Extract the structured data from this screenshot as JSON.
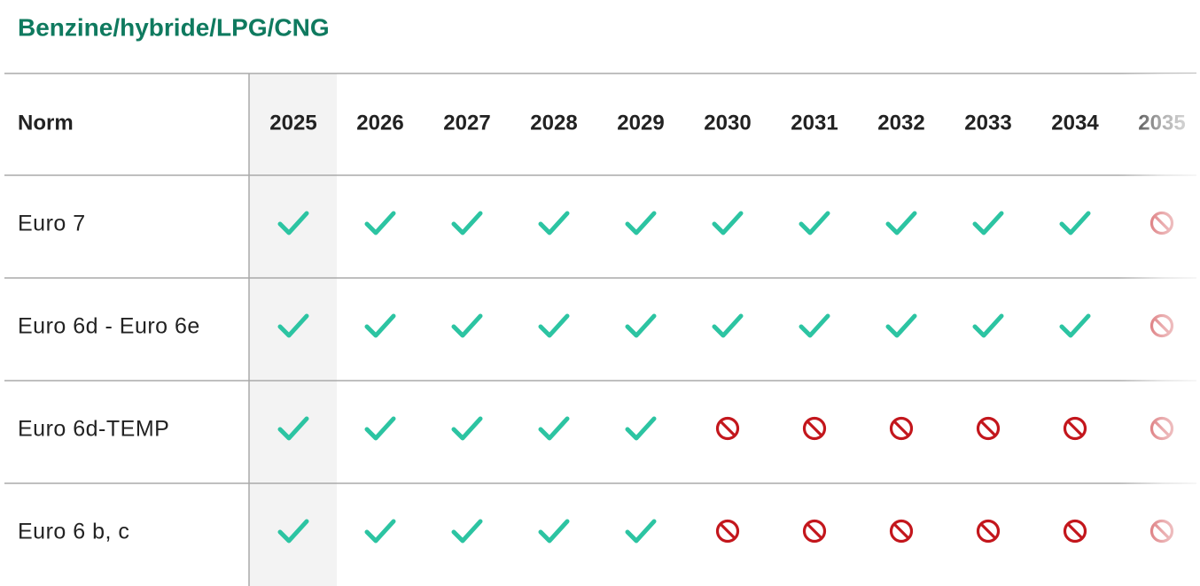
{
  "title": "Benzine/hybride/LPG/CNG",
  "table": {
    "header": {
      "label": "Norm",
      "years": [
        "2025",
        "2026",
        "2027",
        "2028",
        "2029",
        "2030",
        "2031",
        "2032",
        "2033",
        "2034",
        "2035"
      ]
    },
    "rows": [
      {
        "label": "Euro 7",
        "allowed": [
          true,
          true,
          true,
          true,
          true,
          true,
          true,
          true,
          true,
          true,
          false
        ]
      },
      {
        "label": "Euro 6d - Euro 6e",
        "allowed": [
          true,
          true,
          true,
          true,
          true,
          true,
          true,
          true,
          true,
          true,
          false
        ]
      },
      {
        "label": "Euro 6d-TEMP",
        "allowed": [
          true,
          true,
          true,
          true,
          true,
          false,
          false,
          false,
          false,
          false,
          false
        ]
      },
      {
        "label": "Euro 6 b, c",
        "allowed": [
          true,
          true,
          true,
          true,
          true,
          false,
          false,
          false,
          false,
          false,
          false
        ]
      }
    ]
  }
}
